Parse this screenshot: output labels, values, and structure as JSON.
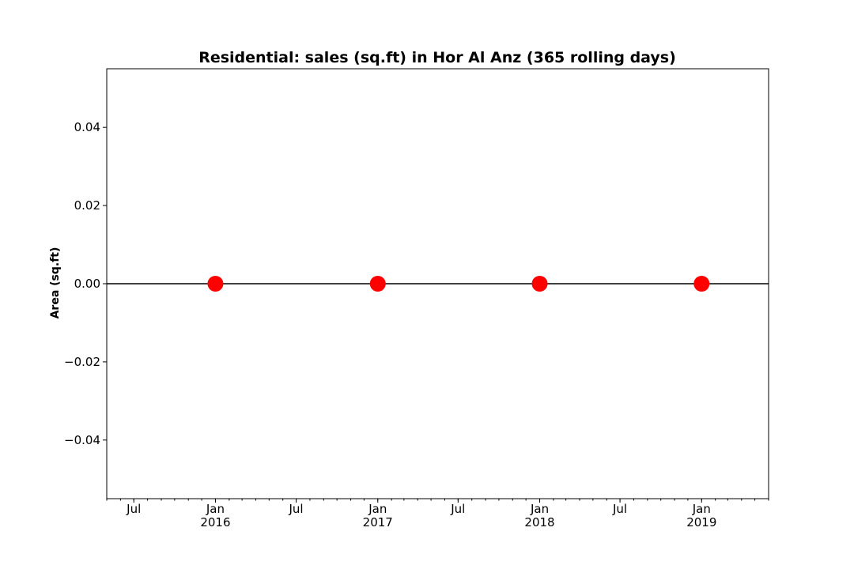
{
  "chart_data": {
    "type": "line",
    "title": "Residential: sales (sq.ft) in Hor Al Anz (365 rolling days)",
    "xlabel": "",
    "ylabel": "Area (sq.ft)",
    "x": [
      "2016-01-01",
      "2017-01-01",
      "2018-01-01",
      "2019-01-01"
    ],
    "series": [
      {
        "values": [
          0,
          0,
          0,
          0
        ],
        "color": "#ff0000",
        "marker": "circle"
      }
    ],
    "xlim": [
      "2015-05-01",
      "2019-06-01"
    ],
    "ylim": [
      -0.055,
      0.055
    ],
    "y_ticks": [
      -0.04,
      -0.02,
      0.0,
      0.02,
      0.04
    ],
    "y_tick_labels": [
      "−0.04",
      "−0.02",
      "0.00",
      "0.02",
      "0.04"
    ],
    "x_ticks": [
      {
        "date": "2015-07-01",
        "label": "Jul",
        "sublabel": ""
      },
      {
        "date": "2016-01-01",
        "label": "Jan",
        "sublabel": "2016"
      },
      {
        "date": "2016-07-01",
        "label": "Jul",
        "sublabel": ""
      },
      {
        "date": "2017-01-01",
        "label": "Jan",
        "sublabel": "2017"
      },
      {
        "date": "2017-07-01",
        "label": "Jul",
        "sublabel": ""
      },
      {
        "date": "2018-01-01",
        "label": "Jan",
        "sublabel": "2018"
      },
      {
        "date": "2018-07-01",
        "label": "Jul",
        "sublabel": ""
      },
      {
        "date": "2019-01-01",
        "label": "Jan",
        "sublabel": "2019"
      }
    ],
    "grid": false,
    "line_color": "#000000"
  }
}
